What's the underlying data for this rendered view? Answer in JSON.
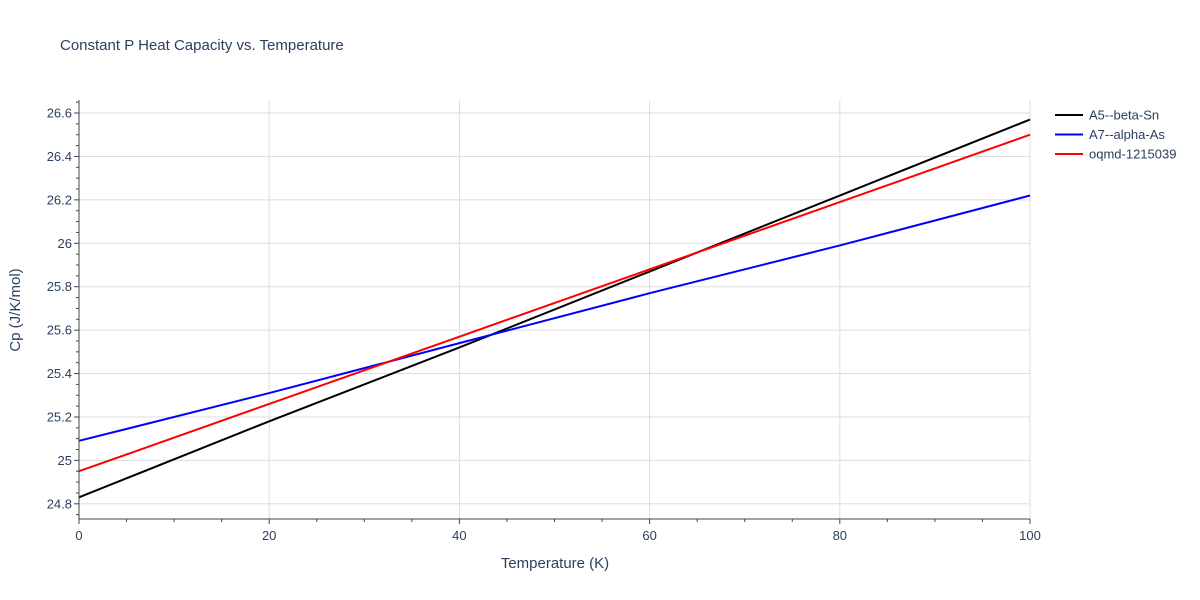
{
  "chart_data": {
    "type": "line",
    "title": "Constant P Heat Capacity vs. Temperature",
    "xlabel": "Temperature (K)",
    "ylabel": "Cp (J/K/mol)",
    "xlim": [
      0,
      100
    ],
    "ylim": [
      24.73,
      26.66
    ],
    "x_ticks": [
      0,
      20,
      40,
      60,
      80,
      100
    ],
    "x_tick_labels": [
      "0",
      "20",
      "40",
      "60",
      "80",
      "100"
    ],
    "y_ticks": [
      24.8,
      25,
      25.2,
      25.4,
      25.6,
      25.8,
      26,
      26.2,
      26.4,
      26.6
    ],
    "y_tick_labels": [
      "24.8",
      "25",
      "25.2",
      "25.4",
      "25.6",
      "25.8",
      "26",
      "26.2",
      "26.4",
      "26.6"
    ],
    "grid": true,
    "legend_position": "top-right",
    "series": [
      {
        "name": "A5--beta-Sn",
        "color": "#000000",
        "x": [
          0,
          20,
          40,
          60,
          80,
          100
        ],
        "y": [
          24.83,
          25.18,
          25.52,
          25.87,
          26.22,
          26.57
        ]
      },
      {
        "name": "A7--alpha-As",
        "color": "#0000ff",
        "x": [
          0,
          20,
          40,
          60,
          80,
          100
        ],
        "y": [
          25.09,
          25.31,
          25.54,
          25.77,
          25.99,
          26.22
        ]
      },
      {
        "name": "oqmd-1215039",
        "color": "#ff0000",
        "x": [
          0,
          20,
          40,
          60,
          80,
          100
        ],
        "y": [
          24.95,
          25.26,
          25.57,
          25.88,
          26.19,
          26.5
        ]
      }
    ]
  }
}
